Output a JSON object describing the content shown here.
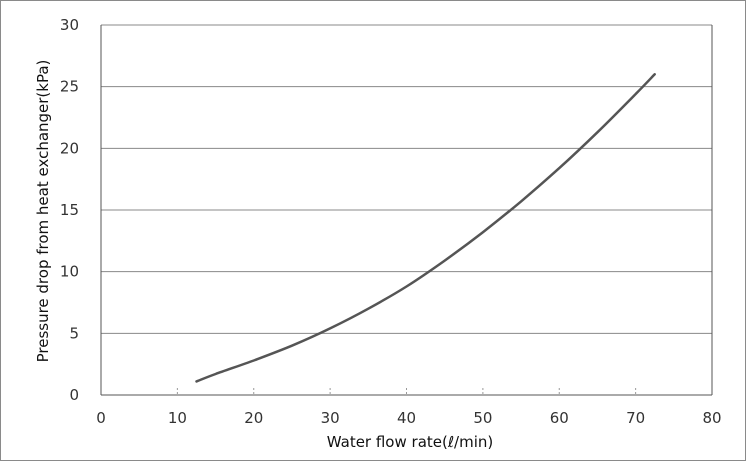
{
  "chart_data": {
    "type": "line",
    "title": "",
    "xlabel": "Water flow rate(ℓ/min)",
    "ylabel": "Pressure drop from heat exchanger(kPa)",
    "xlim": [
      0,
      80
    ],
    "ylim": [
      0,
      30
    ],
    "x_ticks": [
      "0",
      "10",
      "20",
      "30",
      "40",
      "50",
      "60",
      "70",
      "80"
    ],
    "y_ticks": [
      "0",
      "5",
      "10",
      "15",
      "20",
      "25",
      "30"
    ],
    "grid": "horizontal",
    "legend": "none",
    "colors": {
      "line": "#555555",
      "grid": "#888888",
      "axis": "#555555"
    },
    "series": [
      {
        "x": [
          12.5,
          15,
          20,
          25,
          30,
          35,
          40,
          45,
          50,
          55,
          60,
          65,
          70,
          72.5
        ],
        "y": [
          1.1,
          1.7,
          2.8,
          4.0,
          5.4,
          7.0,
          8.8,
          10.9,
          13.2,
          15.7,
          18.4,
          21.3,
          24.4,
          26.0
        ]
      }
    ]
  }
}
